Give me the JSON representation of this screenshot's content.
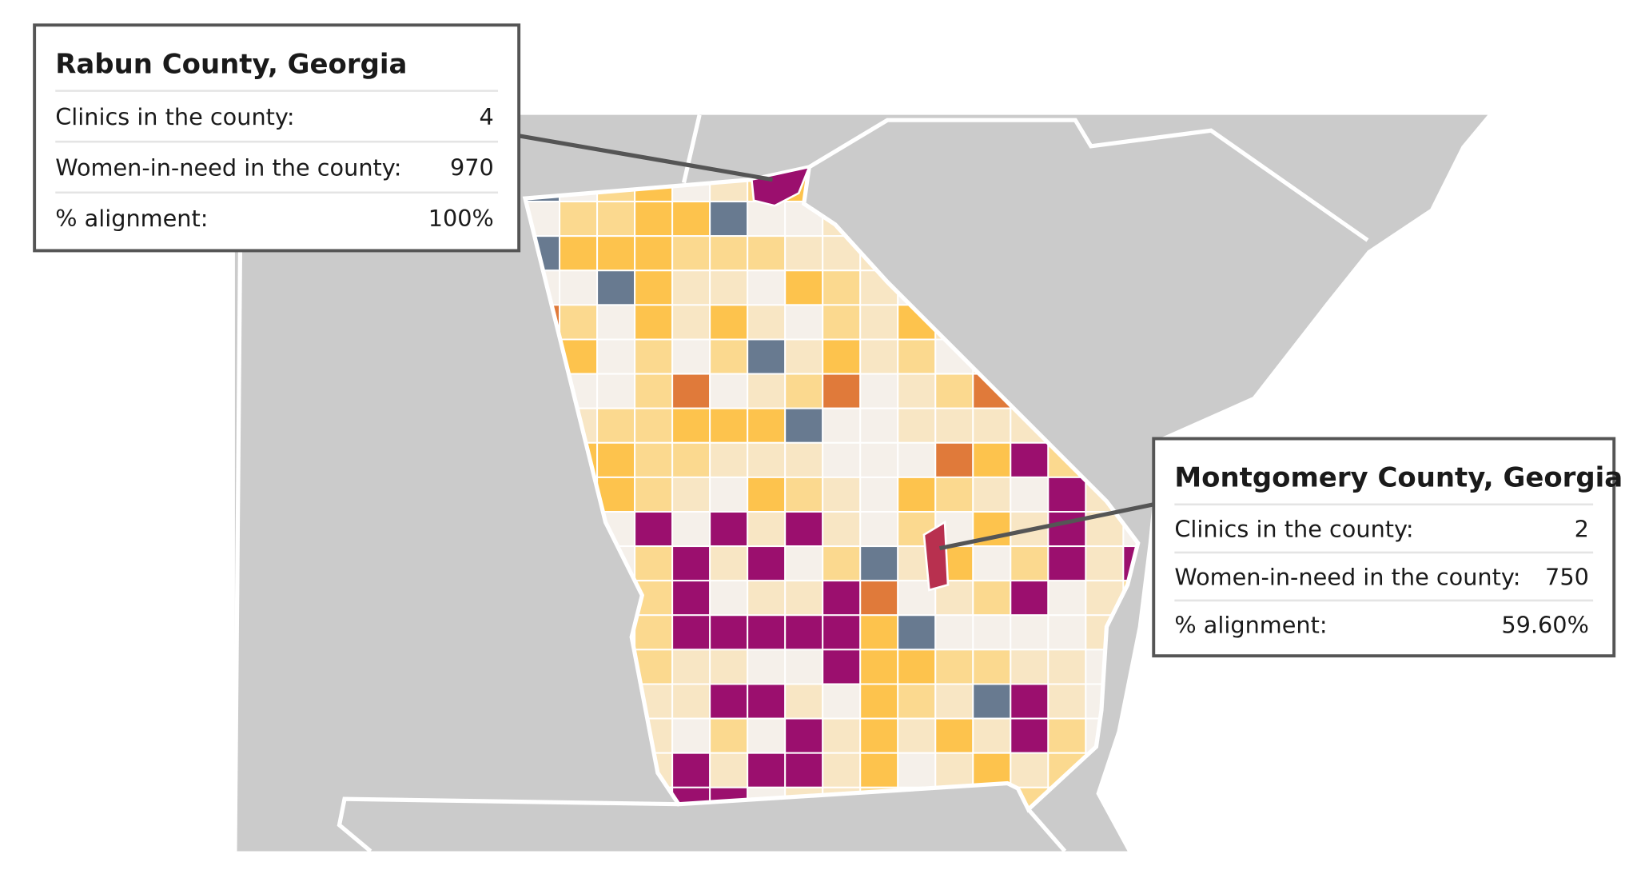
{
  "tooltips": [
    {
      "title": "Rabun County, Georgia",
      "rows": [
        [
          "Clinics in the county:",
          "4"
        ],
        [
          "Women-in-need in the county:",
          "970"
        ],
        [
          "% alignment:",
          "100%"
        ]
      ]
    },
    {
      "title": "Montgomery County, Georgia",
      "rows": [
        [
          "Clinics in the county:",
          "2"
        ],
        [
          "Women-in-need in the county:",
          "750"
        ],
        [
          "% alignment:",
          "59.60%"
        ]
      ]
    }
  ]
}
